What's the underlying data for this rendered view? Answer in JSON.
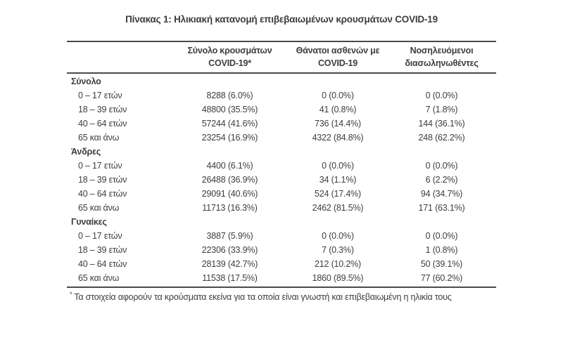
{
  "title": "Πίνακας 1: Ηλικιακή κατανομή επιβεβαιωμένων κρουσμάτων COVID-19",
  "colors": {
    "text": "#3d3d3d",
    "rule": "#4a4a4a",
    "background": "#ffffff"
  },
  "table": {
    "columns": [
      {
        "line1": "Σύνολο κρουσμάτων",
        "line2": "COVID-19*"
      },
      {
        "line1": "Θάνατοι ασθενών με",
        "line2": "COVID-19"
      },
      {
        "line1": "Νοσηλευόμενοι",
        "line2": "διασωληνωθέντες"
      }
    ],
    "sections": [
      {
        "label": "Σύνολο",
        "rows": [
          {
            "label": "0 – 17 ετών",
            "cases": "8288 (6.0%)",
            "deaths": "0 (0.0%)",
            "intubated": "0 (0.0%)"
          },
          {
            "label": "18 – 39 ετών",
            "cases": "48800 (35.5%)",
            "deaths": "41 (0.8%)",
            "intubated": "7 (1.8%)"
          },
          {
            "label": "40 – 64 ετών",
            "cases": "57244 (41.6%)",
            "deaths": "736 (14.4%)",
            "intubated": "144 (36.1%)"
          },
          {
            "label": "65 και άνω",
            "cases": "23254 (16.9%)",
            "deaths": "4322 (84.8%)",
            "intubated": "248 (62.2%)"
          }
        ]
      },
      {
        "label": "Άνδρες",
        "rows": [
          {
            "label": "0 – 17 ετών",
            "cases": "4400 (6.1%)",
            "deaths": "0 (0.0%)",
            "intubated": "0 (0.0%)"
          },
          {
            "label": "18 – 39 ετών",
            "cases": "26488 (36.9%)",
            "deaths": "34 (1.1%)",
            "intubated": "6 (2.2%)"
          },
          {
            "label": "40 – 64 ετών",
            "cases": "29091 (40.6%)",
            "deaths": "524 (17.4%)",
            "intubated": "94 (34.7%)"
          },
          {
            "label": "65 και άνω",
            "cases": "11713 (16.3%)",
            "deaths": "2462 (81.5%)",
            "intubated": "171 (63.1%)"
          }
        ]
      },
      {
        "label": "Γυναίκες",
        "rows": [
          {
            "label": "0 – 17 ετών",
            "cases": "3887 (5.9%)",
            "deaths": "0 (0.0%)",
            "intubated": "0 (0.0%)"
          },
          {
            "label": "18 – 39 ετών",
            "cases": "22306 (33.9%)",
            "deaths": "7 (0.3%)",
            "intubated": "1 (0.8%)"
          },
          {
            "label": "40 – 64 ετών",
            "cases": "28139 (42.7%)",
            "deaths": "212 (10.2%)",
            "intubated": "50 (39.1%)"
          },
          {
            "label": "65 και άνω",
            "cases": "11538 (17.5%)",
            "deaths": "1860 (89.5%)",
            "intubated": "77 (60.2%)"
          }
        ]
      }
    ],
    "footnote": {
      "marker": "*",
      "text": "Τα στοιχεία αφορούν τα κρούσματα εκείνα για τα οποία είναι γνωστή και επιβεβαιωμένη η ηλικία τους"
    }
  }
}
